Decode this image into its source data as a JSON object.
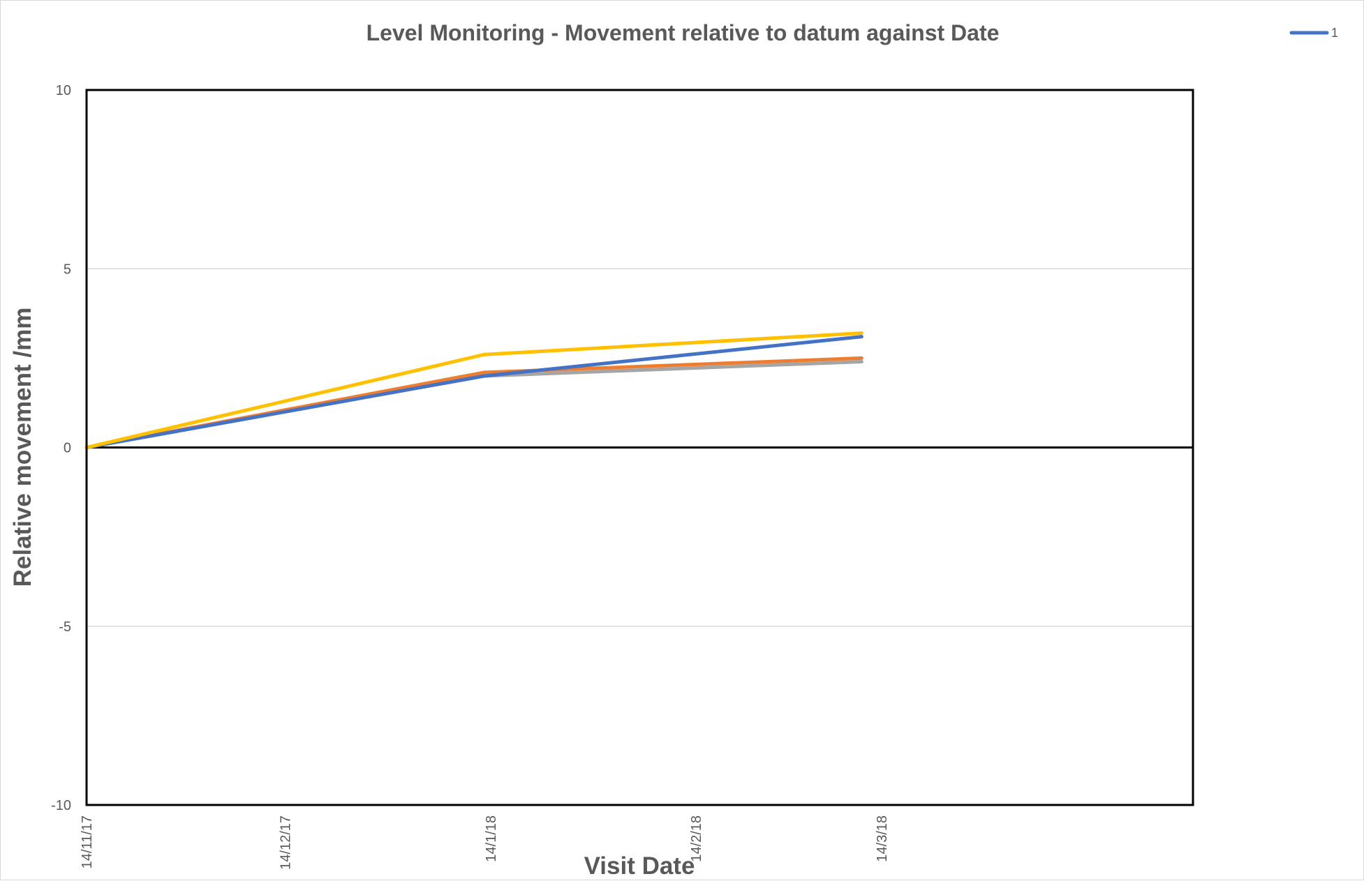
{
  "chart_data": {
    "type": "line",
    "title": "Level Monitoring - Movement relative to datum against Date",
    "xlabel": "Visit Date",
    "ylabel": "Relative movement /mm",
    "ylim": [
      -10,
      10
    ],
    "y_ticks": [
      -10,
      -5,
      0,
      5,
      10
    ],
    "x_ticks": [
      "14/11/17",
      "14/12/17",
      "14/1/18",
      "14/2/18",
      "14/3/18"
    ],
    "x_tick_dates": [
      "2017-11-14",
      "2017-12-14",
      "2018-01-14",
      "2018-02-14",
      "2018-03-14"
    ],
    "xlim": [
      "2017-11-14",
      "2018-04-30"
    ],
    "grid": true,
    "legend_position": "top-right",
    "legend": [
      {
        "label": "1",
        "color": "#4472c4"
      }
    ],
    "x": [
      "2017-11-14",
      "2018-01-13",
      "2018-03-11"
    ],
    "series": [
      {
        "name": "1",
        "color": "#4472c4",
        "values": [
          0,
          2.0,
          3.1
        ]
      },
      {
        "color": "#a5a5a5",
        "values": [
          0,
          2.0,
          2.4
        ]
      },
      {
        "color": "#ed7d31",
        "values": [
          0,
          2.1,
          2.5
        ]
      },
      {
        "color": "#ffc000",
        "values": [
          0,
          2.6,
          3.2
        ]
      }
    ]
  }
}
